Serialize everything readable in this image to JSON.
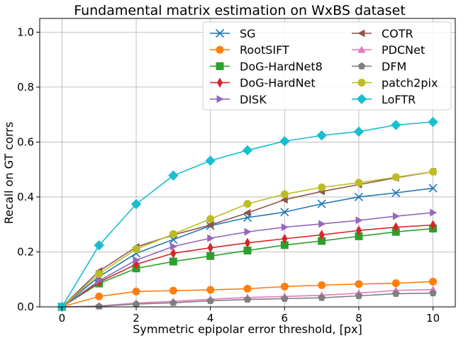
{
  "chart_data": {
    "type": "line",
    "title": "Fundamental matrix estimation on WxBS dataset",
    "xlabel": "Symmetric epipolar error threshold, [px]",
    "ylabel": "Recall on GT corrs",
    "xlim": [
      -0.6,
      10.6
    ],
    "ylim": [
      0,
      1.05
    ],
    "xticks": [
      0,
      2,
      4,
      6,
      8,
      10
    ],
    "yticks": [
      0.0,
      0.2,
      0.4,
      0.6,
      0.8,
      1.0
    ],
    "ytick_labels": [
      "0.0",
      "0.2",
      "0.4",
      "0.6",
      "0.8",
      "1.0"
    ],
    "grid": true,
    "legend_position": "top-right",
    "x": [
      0,
      1,
      2,
      3,
      4,
      5,
      6,
      7,
      8,
      9,
      10
    ],
    "series": [
      {
        "name": "SG",
        "color": "#1f77b4",
        "marker": "x",
        "values": [
          0,
          0.11,
          0.195,
          0.245,
          0.295,
          0.325,
          0.345,
          0.375,
          0.4,
          0.415,
          0.432
        ]
      },
      {
        "name": "RootSIFT",
        "color": "#ff7f0e",
        "marker": "o",
        "values": [
          0,
          0.038,
          0.056,
          0.059,
          0.062,
          0.066,
          0.074,
          0.079,
          0.083,
          0.086,
          0.092
        ]
      },
      {
        "name": "DoG-HardNet8",
        "color": "#2ca02c",
        "marker": "s",
        "values": [
          0,
          0.085,
          0.14,
          0.165,
          0.185,
          0.205,
          0.225,
          0.24,
          0.257,
          0.273,
          0.285
        ]
      },
      {
        "name": "DoG-HardNet",
        "color": "#d62728",
        "marker": "d",
        "values": [
          0,
          0.09,
          0.155,
          0.195,
          0.215,
          0.233,
          0.248,
          0.262,
          0.278,
          0.29,
          0.298
        ]
      },
      {
        "name": "DISK",
        "color": "#9467bd",
        "marker": ">",
        "values": [
          0,
          0.095,
          0.17,
          0.22,
          0.25,
          0.273,
          0.29,
          0.302,
          0.315,
          0.33,
          0.343
        ]
      },
      {
        "name": "COTR",
        "color": "#8c564b",
        "marker": "<",
        "values": [
          0,
          0.13,
          0.218,
          0.262,
          0.298,
          0.342,
          0.39,
          0.42,
          0.445,
          0.47,
          0.492
        ]
      },
      {
        "name": "PDCNet",
        "color": "#e377c2",
        "marker": "^",
        "values": [
          0,
          0.003,
          0.014,
          0.02,
          0.028,
          0.034,
          0.038,
          0.042,
          0.05,
          0.06,
          0.063
        ]
      },
      {
        "name": "DFM",
        "color": "#7f7f7f",
        "marker": "p",
        "values": [
          0,
          0.002,
          0.01,
          0.015,
          0.022,
          0.027,
          0.03,
          0.033,
          0.04,
          0.048,
          0.05
        ]
      },
      {
        "name": "patch2pix",
        "color": "#bcbd22",
        "marker": "o",
        "values": [
          0,
          0.12,
          0.21,
          0.265,
          0.32,
          0.375,
          0.41,
          0.435,
          0.452,
          0.472,
          0.492
        ]
      },
      {
        "name": "LoFTR",
        "color": "#17becf",
        "marker": "D",
        "values": [
          0,
          0.224,
          0.374,
          0.478,
          0.532,
          0.57,
          0.603,
          0.624,
          0.638,
          0.662,
          0.673
        ]
      }
    ]
  }
}
